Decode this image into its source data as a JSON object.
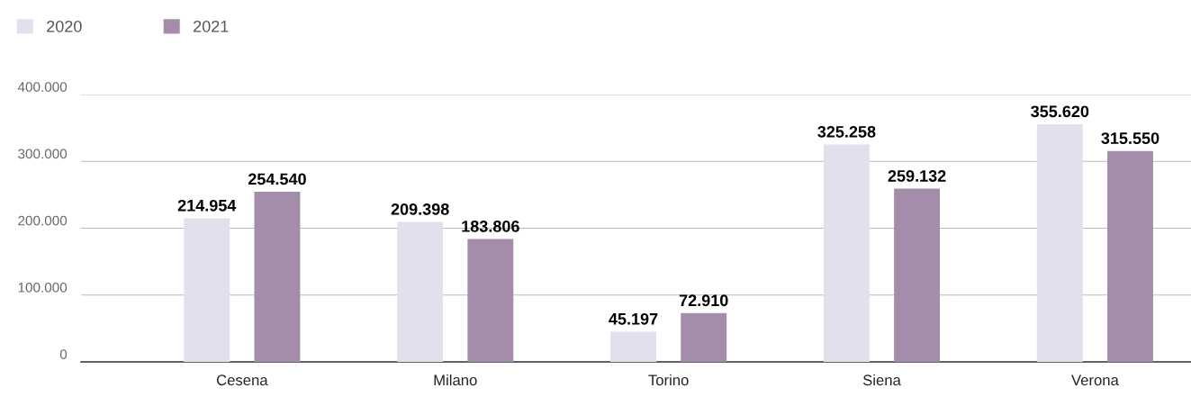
{
  "chart_data": {
    "type": "bar",
    "categories": [
      "Cesena",
      "Milano",
      "Torino",
      "Siena",
      "Verona"
    ],
    "series": [
      {
        "name": "2020",
        "color": "#e4dfec",
        "values": [
          214954,
          209398,
          45197,
          325258,
          355620
        ],
        "value_labels": [
          "214.954",
          "209.398",
          "45.197",
          "325.258",
          "355.620"
        ]
      },
      {
        "name": "2021",
        "color": "#a48daa",
        "values": [
          254540,
          183806,
          72910,
          259132,
          315550
        ],
        "value_labels": [
          "254.540",
          "183.806",
          "72.910",
          "259.132",
          "315.550"
        ]
      }
    ],
    "ylim": [
      0,
      400000
    ],
    "yticks": [
      0,
      {
        "value": 100000,
        "label": "100.000"
      },
      {
        "value": 200000,
        "label": "200.000"
      },
      {
        "value": 300000,
        "label": "300.000"
      },
      {
        "value": 400000,
        "label": "400.000"
      }
    ],
    "grid": "y",
    "legend": "top left"
  }
}
